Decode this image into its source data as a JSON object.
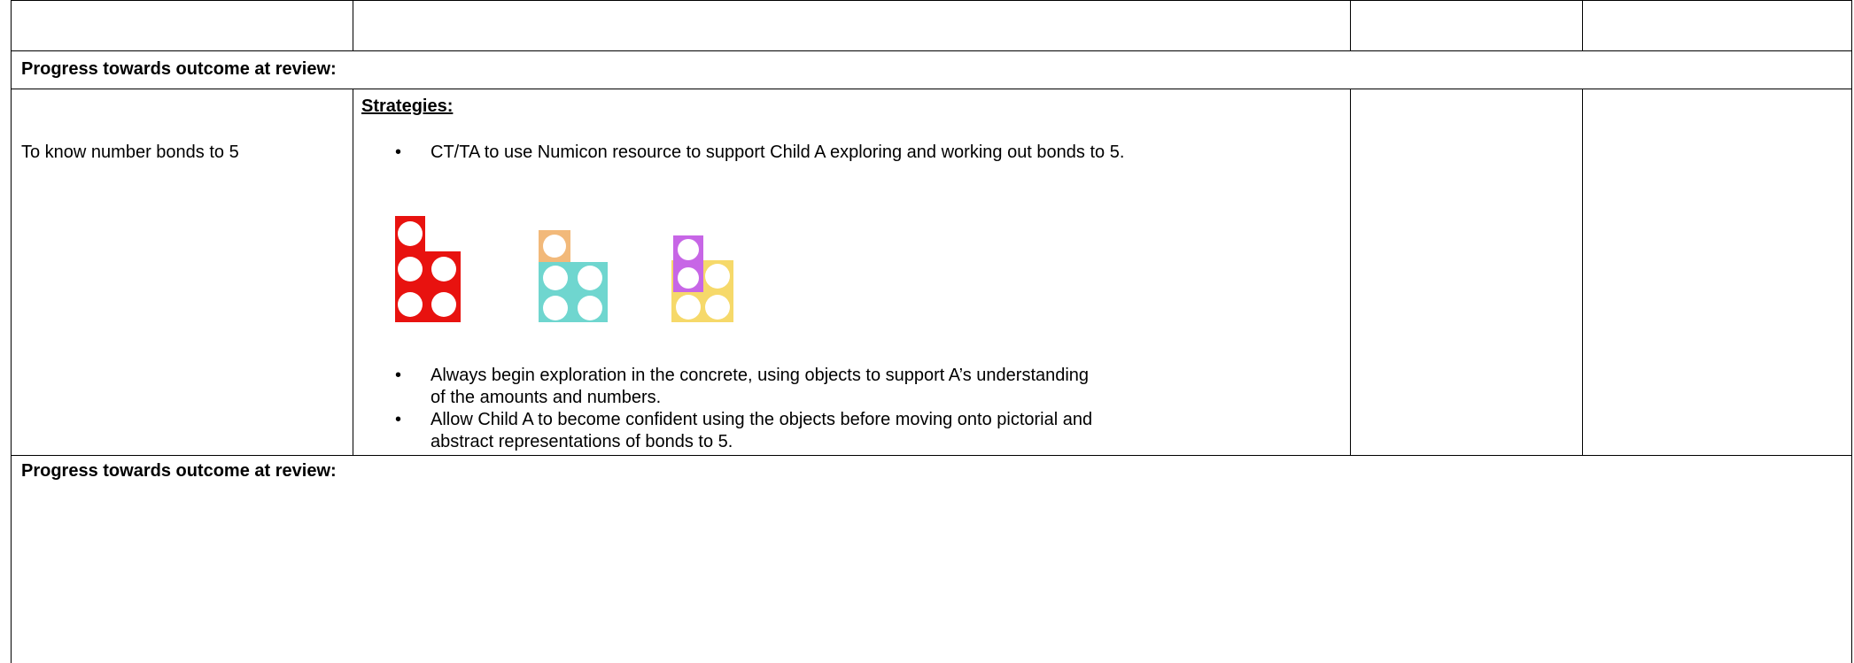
{
  "progress_1": {
    "label": "Progress towards outcome at review:"
  },
  "outcome": {
    "text": "To know number bonds to 5"
  },
  "strategies": {
    "heading": "Strategies:",
    "bullets": [
      "CT/TA to use Numicon resource to support Child A exploring and working out bonds to 5.",
      "Always begin exploration in the concrete, using objects to support A’s understanding of the amounts and numbers.",
      "Allow Child A to become confident using the objects before moving onto pictorial and abstract representations of bonds to 5."
    ]
  },
  "progress_2": {
    "label": "Progress towards outcome at review:"
  }
}
